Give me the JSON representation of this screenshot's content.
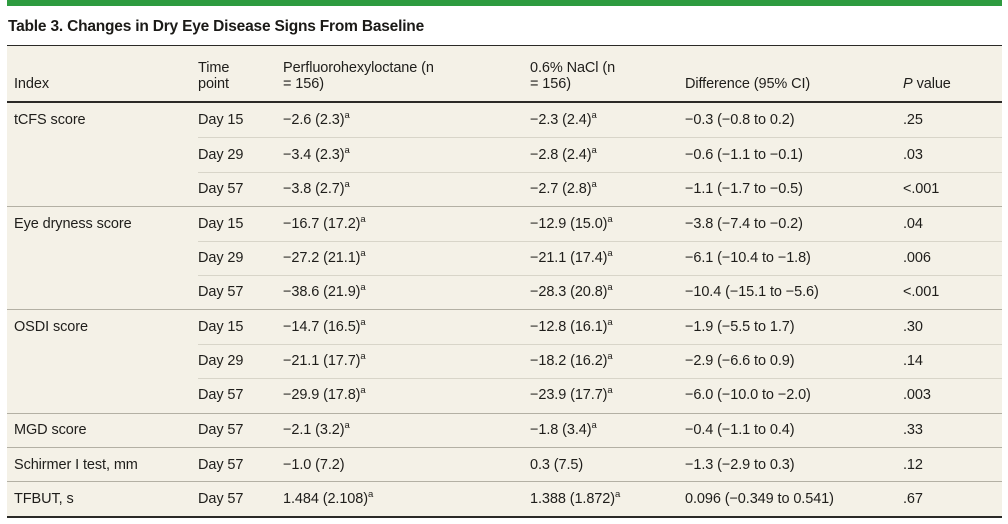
{
  "accent_color": "#2e9b3f",
  "table": {
    "title": "Table 3. Changes in Dry Eye Disease Signs From Baseline",
    "columns": {
      "index": "Index",
      "time_point": "Time point",
      "pfh": "Perfluorohexyloctane (n = 156)",
      "nacl": "0.6% NaCl (n = 156)",
      "difference": "Difference (95% CI)",
      "p_label_italic": "P",
      "p_label_rest": "value"
    },
    "footnote_marker": "a",
    "rows": [
      {
        "index": "tCFS score",
        "time": "Day 15",
        "pfh": "−2.6 (2.3)",
        "pfh_sup": "a",
        "nacl": "−2.3 (2.4)",
        "nacl_sup": "a",
        "diff": "−0.3 (−0.8 to 0.2)",
        "p": ".25"
      },
      {
        "index": "",
        "time": "Day 29",
        "pfh": "−3.4 (2.3)",
        "pfh_sup": "a",
        "nacl": "−2.8 (2.4)",
        "nacl_sup": "a",
        "diff": "−0.6 (−1.1 to −0.1)",
        "p": ".03"
      },
      {
        "index": "",
        "time": "Day 57",
        "pfh": "−3.8 (2.7)",
        "pfh_sup": "a",
        "nacl": "−2.7 (2.8)",
        "nacl_sup": "a",
        "diff": "−1.1 (−1.7 to −0.5)",
        "p": "<.001"
      },
      {
        "index": "Eye dryness score",
        "time": "Day 15",
        "pfh": "−16.7 (17.2)",
        "pfh_sup": "a",
        "nacl": "−12.9 (15.0)",
        "nacl_sup": "a",
        "diff": "−3.8 (−7.4 to −0.2)",
        "p": ".04"
      },
      {
        "index": "",
        "time": "Day 29",
        "pfh": "−27.2 (21.1)",
        "pfh_sup": "a",
        "nacl": "−21.1 (17.4)",
        "nacl_sup": "a",
        "diff": "−6.1 (−10.4 to −1.8)",
        "p": ".006"
      },
      {
        "index": "",
        "time": "Day 57",
        "pfh": "−38.6 (21.9)",
        "pfh_sup": "a",
        "nacl": "−28.3 (20.8)",
        "nacl_sup": "a",
        "diff": "−10.4 (−15.1 to −5.6)",
        "p": "<.001"
      },
      {
        "index": "OSDI score",
        "time": "Day 15",
        "pfh": "−14.7 (16.5)",
        "pfh_sup": "a",
        "nacl": "−12.8 (16.1)",
        "nacl_sup": "a",
        "diff": "−1.9 (−5.5 to 1.7)",
        "p": ".30"
      },
      {
        "index": "",
        "time": "Day 29",
        "pfh": "−21.1 (17.7)",
        "pfh_sup": "a",
        "nacl": "−18.2 (16.2)",
        "nacl_sup": "a",
        "diff": "−2.9 (−6.6 to 0.9)",
        "p": ".14"
      },
      {
        "index": "",
        "time": "Day 57",
        "pfh": "−29.9 (17.8)",
        "pfh_sup": "a",
        "nacl": "−23.9 (17.7)",
        "nacl_sup": "a",
        "diff": "−6.0 (−10.0 to −2.0)",
        "p": ".003"
      },
      {
        "index": "MGD score",
        "time": "Day 57",
        "pfh": "−2.1 (3.2)",
        "pfh_sup": "a",
        "nacl": "−1.8 (3.4)",
        "nacl_sup": "a",
        "diff": "−0.4 (−1.1 to 0.4)",
        "p": ".33"
      },
      {
        "index": "Schirmer I test, mm",
        "time": "Day 57",
        "pfh": "−1.0 (7.2)",
        "pfh_sup": "",
        "nacl": "0.3 (7.5)",
        "nacl_sup": "",
        "diff": "−1.3 (−2.9 to 0.3)",
        "p": ".12"
      },
      {
        "index": "TFBUT, s",
        "time": "Day 57",
        "pfh": "1.484 (2.108)",
        "pfh_sup": "a",
        "nacl": "1.388 (1.872)",
        "nacl_sup": "a",
        "diff": "0.096 (−0.349 to 0.541)",
        "p": ".67"
      }
    ]
  }
}
